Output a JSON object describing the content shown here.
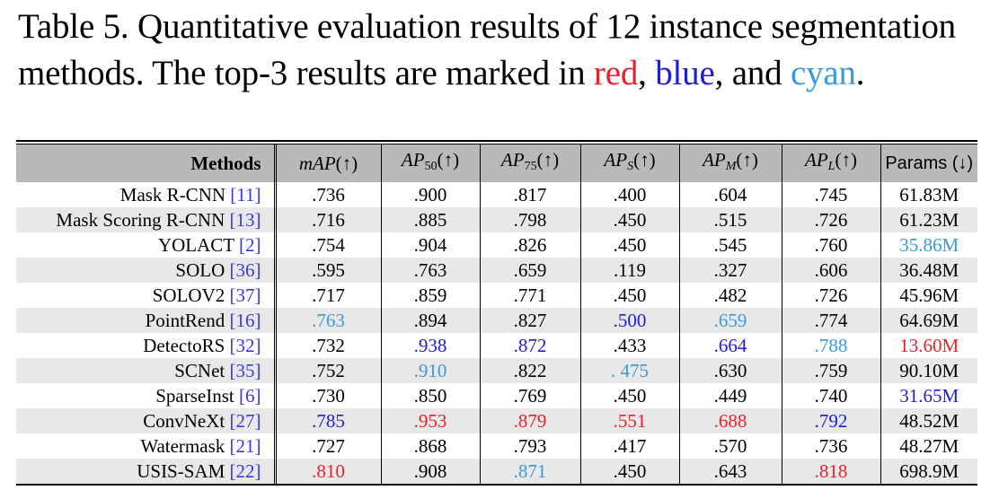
{
  "caption": {
    "text_before": "Table 5. Quantitative evaluation results of 12 instance segmentation methods. The top-3 results are marked in ",
    "red_word": "red",
    "sep1": ", ",
    "blue_word": "blue",
    "sep2": ", and ",
    "cyan_word": "cyan",
    "end": "."
  },
  "header": {
    "methods": "Methods",
    "map_base": "mAP",
    "ap_base": "AP",
    "sub_50": "50",
    "sub_75": "75",
    "sub_s": "S",
    "sub_m": "M",
    "sub_l": "L",
    "up_arrow": "(↑)",
    "params": "Params (↓)"
  },
  "colors": {
    "red": "#e8222a",
    "blue": "#1e1ed2",
    "cyan": "#3a9ad9",
    "ref": "#3a3ad6"
  },
  "rows": [
    {
      "name": "Mask R-CNN",
      "ref": "[11]",
      "mAP": ".736",
      "ap50": ".900",
      "ap75": ".817",
      "aps": ".400",
      "apm": ".604",
      "apl": ".745",
      "params": "61.83M",
      "hl": {}
    },
    {
      "name": "Mask Scoring R-CNN",
      "ref": "[13]",
      "mAP": ".716",
      "ap50": ".885",
      "ap75": ".798",
      "aps": ".450",
      "apm": ".515",
      "apl": ".726",
      "params": "61.23M",
      "hl": {}
    },
    {
      "name": "YOLACT",
      "ref": "[2]",
      "mAP": ".754",
      "ap50": ".904",
      "ap75": ".826",
      "aps": ".450",
      "apm": ".545",
      "apl": ".760",
      "params": "35.86M",
      "hl": {
        "params": "cyan"
      }
    },
    {
      "name": "SOLO",
      "ref": "[36]",
      "mAP": ".595",
      "ap50": ".763",
      "ap75": ".659",
      "aps": ".119",
      "apm": ".327",
      "apl": ".606",
      "params": "36.48M",
      "hl": {}
    },
    {
      "name": "SOLOV2",
      "ref": "[37]",
      "mAP": ".717",
      "ap50": ".859",
      "ap75": ".771",
      "aps": ".450",
      "apm": ".482",
      "apl": ".726",
      "params": "45.96M",
      "hl": {}
    },
    {
      "name": "PointRend",
      "ref": "[16]",
      "mAP": ".763",
      "ap50": ".894",
      "ap75": ".827",
      "aps": ".500",
      "apm": ".659",
      "apl": ".774",
      "params": "64.69M",
      "hl": {
        "mAP": "cyan",
        "aps": "blue",
        "apm": "cyan"
      }
    },
    {
      "name": "DetectoRS",
      "ref": "[32]",
      "mAP": ".732",
      "ap50": ".938",
      "ap75": ".872",
      "aps": ".433",
      "apm": ".664",
      "apl": ".788",
      "params": "13.60M",
      "hl": {
        "ap50": "blue",
        "ap75": "blue",
        "apm": "blue",
        "apl": "cyan",
        "params": "red"
      }
    },
    {
      "name": "SCNet",
      "ref": "[35]",
      "mAP": ".752",
      "ap50": ".910",
      "ap75": ".822",
      "aps": ". 475",
      "apm": ".630",
      "apl": ".759",
      "params": "90.10M",
      "hl": {
        "ap50": "cyan",
        "aps": "cyan"
      }
    },
    {
      "name": "SparseInst",
      "ref": "[6]",
      "mAP": ".730",
      "ap50": ".850",
      "ap75": ".769",
      "aps": ".450",
      "apm": ".449",
      "apl": ".740",
      "params": "31.65M",
      "hl": {
        "params": "blue"
      }
    },
    {
      "name": "ConvNeXt",
      "ref": "[27]",
      "mAP": ".785",
      "ap50": ".953",
      "ap75": ".879",
      "aps": ".551",
      "apm": ".688",
      "apl": ".792",
      "params": "48.52M",
      "hl": {
        "mAP": "blue",
        "ap50": "red",
        "ap75": "red",
        "aps": "red",
        "apm": "red",
        "apl": "blue"
      }
    },
    {
      "name": "Watermask",
      "ref": "[21]",
      "mAP": ".727",
      "ap50": ".868",
      "ap75": ".793",
      "aps": ".417",
      "apm": ".570",
      "apl": ".736",
      "params": "48.27M",
      "hl": {}
    },
    {
      "name": "USIS-SAM",
      "ref": "[22]",
      "mAP": ".810",
      "ap50": ".908",
      "ap75": ".871",
      "aps": ".450",
      "apm": ".643",
      "apl": ".818",
      "params": "698.9M",
      "hl": {
        "mAP": "red",
        "ap75": "cyan",
        "apl": "red"
      }
    }
  ]
}
